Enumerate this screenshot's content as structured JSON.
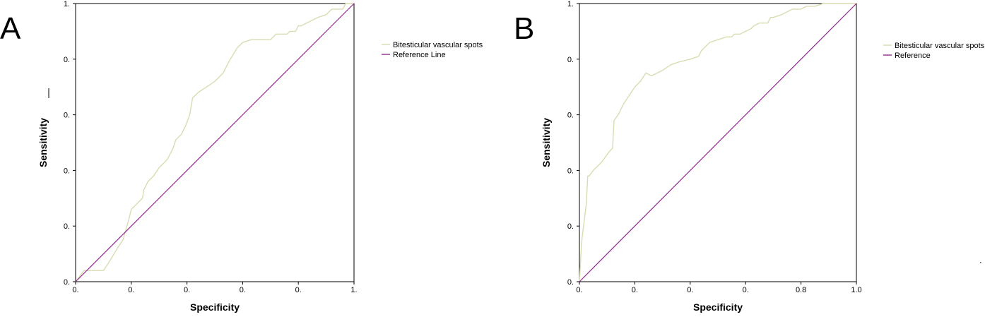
{
  "chart_data": [
    {
      "type": "line",
      "panel_label": "A",
      "xlabel": "Specificity",
      "ylabel": "Sensitivity",
      "x_tick_labels": [
        "0.",
        "0.",
        "0.",
        "0.",
        "0.",
        "1."
      ],
      "y_tick_labels": [
        "0.",
        "0.",
        "0.",
        "0.",
        "0.",
        "1."
      ],
      "xlim": [
        0,
        1
      ],
      "ylim": [
        0,
        1
      ],
      "grid": false,
      "legend_position": "top-right outside",
      "series": [
        {
          "name": "Bitesticular vascular spots",
          "color": "#d9dcb2",
          "x": [
            0.0,
            0.03,
            0.1,
            0.12,
            0.15,
            0.17,
            0.19,
            0.2,
            0.22,
            0.24,
            0.245,
            0.26,
            0.28,
            0.3,
            0.32,
            0.33,
            0.35,
            0.36,
            0.38,
            0.395,
            0.41,
            0.42,
            0.43,
            0.44,
            0.47,
            0.5,
            0.53,
            0.55,
            0.58,
            0.6,
            0.63,
            0.66,
            0.68,
            0.7,
            0.72,
            0.73,
            0.75,
            0.76,
            0.77,
            0.79,
            0.8,
            0.81,
            0.83,
            0.85,
            0.87,
            0.9,
            0.92,
            0.94,
            0.95,
            0.96,
            0.97,
            1.0
          ],
          "y": [
            0.0,
            0.04,
            0.04,
            0.07,
            0.12,
            0.15,
            0.22,
            0.26,
            0.28,
            0.3,
            0.33,
            0.36,
            0.38,
            0.41,
            0.43,
            0.44,
            0.48,
            0.51,
            0.53,
            0.56,
            0.6,
            0.66,
            0.67,
            0.68,
            0.7,
            0.72,
            0.75,
            0.79,
            0.84,
            0.86,
            0.87,
            0.87,
            0.87,
            0.87,
            0.89,
            0.89,
            0.89,
            0.89,
            0.9,
            0.9,
            0.92,
            0.92,
            0.93,
            0.94,
            0.95,
            0.96,
            0.98,
            0.98,
            0.98,
            0.98,
            1.0,
            1.0
          ]
        },
        {
          "name": "Reference Line",
          "color": "#8e2a8e",
          "x": [
            0,
            1
          ],
          "y": [
            0,
            1
          ]
        }
      ]
    },
    {
      "type": "line",
      "panel_label": "B",
      "xlabel": "Specificity",
      "ylabel": "Sensitivity",
      "x_tick_labels": [
        "0.",
        "0.",
        "0.",
        "0.",
        "0.8",
        "1.0"
      ],
      "y_tick_labels": [
        "0.",
        "0.",
        "0.",
        "0.",
        "0.",
        "1."
      ],
      "xlim": [
        0,
        1
      ],
      "ylim": [
        0,
        1
      ],
      "grid": false,
      "legend_position": "top-right outside",
      "series": [
        {
          "name": "Bitesticular vascular spots",
          "color": "#d9dcb2",
          "x": [
            0.0,
            0.008,
            0.01,
            0.015,
            0.02,
            0.025,
            0.03,
            0.035,
            0.05,
            0.08,
            0.11,
            0.12,
            0.125,
            0.14,
            0.16,
            0.18,
            0.2,
            0.22,
            0.24,
            0.26,
            0.28,
            0.3,
            0.33,
            0.36,
            0.4,
            0.43,
            0.44,
            0.45,
            0.47,
            0.5,
            0.53,
            0.55,
            0.56,
            0.57,
            0.58,
            0.6,
            0.62,
            0.63,
            0.65,
            0.68,
            0.69,
            0.7,
            0.73,
            0.75,
            0.77,
            0.8,
            0.82,
            0.85,
            0.88,
            0.9,
            1.0
          ],
          "y": [
            0.0,
            0.14,
            0.16,
            0.2,
            0.24,
            0.28,
            0.38,
            0.38,
            0.4,
            0.43,
            0.47,
            0.48,
            0.58,
            0.6,
            0.64,
            0.67,
            0.7,
            0.72,
            0.75,
            0.74,
            0.75,
            0.76,
            0.78,
            0.79,
            0.8,
            0.81,
            0.83,
            0.84,
            0.86,
            0.87,
            0.88,
            0.88,
            0.89,
            0.89,
            0.89,
            0.9,
            0.91,
            0.92,
            0.93,
            0.93,
            0.95,
            0.95,
            0.96,
            0.97,
            0.98,
            0.98,
            0.99,
            0.99,
            1.0,
            1.0,
            1.0
          ]
        },
        {
          "name": "Reference",
          "color": "#8e2a8e",
          "x": [
            0,
            1
          ],
          "y": [
            0,
            1
          ]
        }
      ]
    }
  ]
}
